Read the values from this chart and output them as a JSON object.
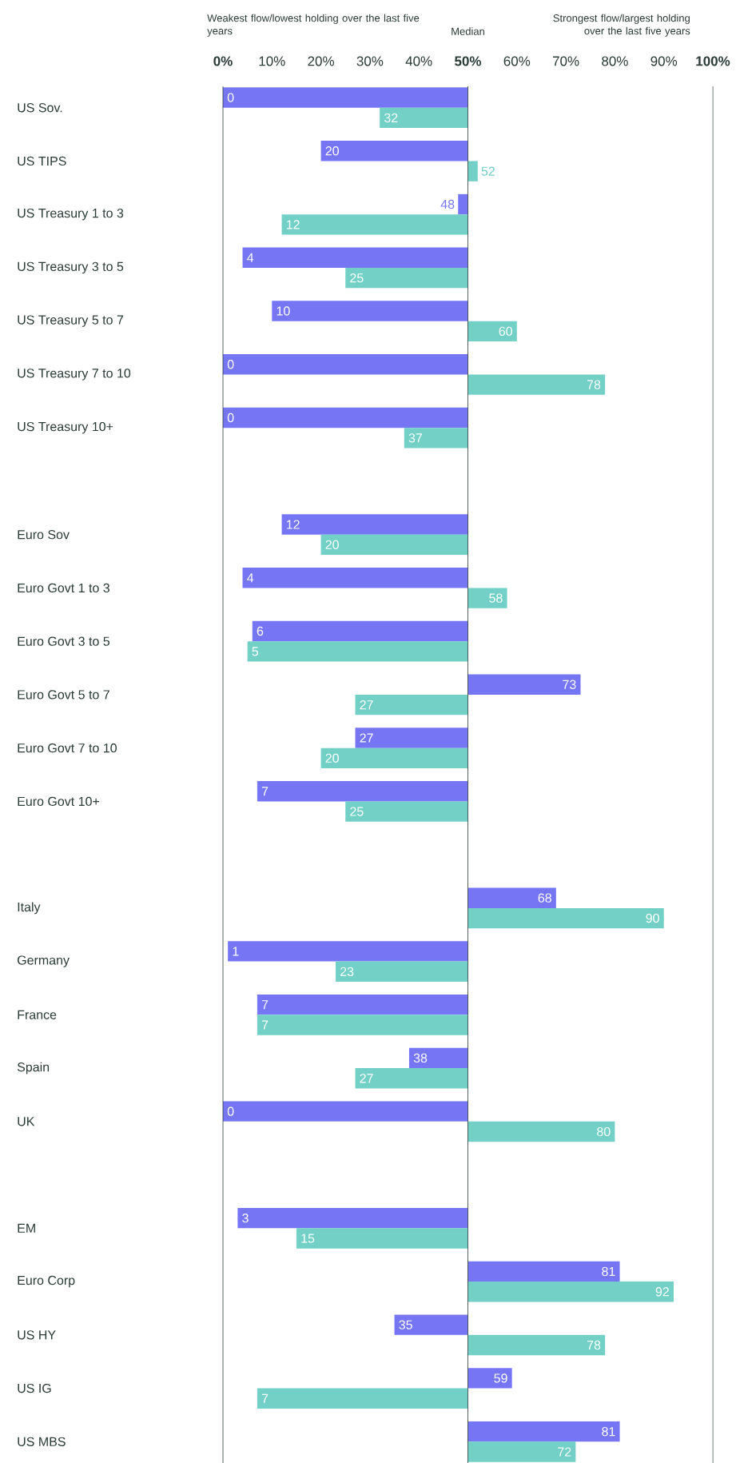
{
  "chart_data": {
    "type": "bar",
    "orientation": "horizontal",
    "annotations": [
      "Weakest flow/lowest holding over the last five years",
      "Strongest flow/largest holding over the last five years"
    ],
    "categories": [
      "US Sov.",
      "US TIPS",
      "US Treasury 1 to 3",
      "US Treasury 3 to 5",
      "US Treasury 5 to 7",
      "US Treasury 7 to 10",
      "US Treasury 10+",
      null,
      "Euro Sov",
      "Euro Govt 1 to 3",
      "Euro Govt 3 to 5",
      "Euro Govt 5 to 7",
      "Euro Govt 7 to 10",
      "Euro Govt 10+",
      null,
      "Italy",
      "Germany",
      "France",
      "Spain",
      "UK",
      null,
      "EM",
      "Euro Corp",
      "US HY",
      "US IG",
      "US MBS"
    ],
    "series": [
      {
        "color": "#7676f5",
        "base": [
          50,
          50,
          50,
          50,
          50,
          50,
          50,
          null,
          50,
          50,
          50,
          50,
          50,
          50,
          null,
          50,
          50,
          50,
          50,
          50,
          null,
          50,
          50,
          50,
          50,
          50
        ],
        "values": [
          -50,
          -30,
          -2,
          -46,
          -40,
          -50,
          -50,
          null,
          -38,
          -46,
          -44,
          23,
          -23,
          -43,
          null,
          18,
          -49,
          -43,
          -12,
          -50,
          null,
          -47,
          31,
          -15,
          9,
          31
        ],
        "value_labels": [
          "0",
          "20",
          "48",
          "4",
          "10",
          "0",
          "0",
          null,
          "12",
          "4",
          "6",
          "73",
          "27",
          "7",
          null,
          "68",
          "1",
          "7",
          "38",
          "0",
          null,
          "3",
          "81",
          "35",
          "59",
          "81"
        ]
      },
      {
        "color": "#72d0c6",
        "base": [
          50,
          50,
          50,
          50,
          50,
          50,
          50,
          null,
          50,
          50,
          50,
          50,
          50,
          50,
          null,
          50,
          50,
          50,
          50,
          50,
          null,
          50,
          50,
          50,
          50,
          50
        ],
        "values": [
          -18,
          2,
          -38,
          -25,
          10,
          28,
          -13,
          null,
          -30,
          8,
          -45,
          -23,
          -30,
          -25,
          null,
          40,
          -27,
          -43,
          -23,
          30,
          null,
          -35,
          42,
          28,
          -43,
          22
        ],
        "value_labels": [
          "32",
          "52",
          "12",
          "25",
          "60",
          "78",
          "37",
          null,
          "20",
          "58",
          "5",
          "27",
          "20",
          "25",
          null,
          "90",
          "23",
          "7",
          "27",
          "80",
          null,
          "15",
          "92",
          "78",
          "7",
          "72"
        ]
      }
    ],
    "xlim": [
      0,
      100
    ],
    "xticks": [
      {
        "value": 0,
        "label": "0%"
      },
      {
        "value": 10,
        "label": "10%"
      },
      {
        "value": 20,
        "label": "20%"
      },
      {
        "value": 30,
        "label": "30%"
      },
      {
        "value": 40,
        "label": "40%"
      },
      {
        "value": 50,
        "label": "50%"
      },
      {
        "value": 60,
        "label": "60%"
      },
      {
        "value": 70,
        "label": "70%"
      },
      {
        "value": 80,
        "label": "80%"
      },
      {
        "value": 90,
        "label": "90%"
      },
      {
        "value": 100,
        "label": "100%"
      }
    ],
    "ref_lines": [
      {
        "axis": "x",
        "value": 50,
        "label": "Median"
      }
    ]
  }
}
